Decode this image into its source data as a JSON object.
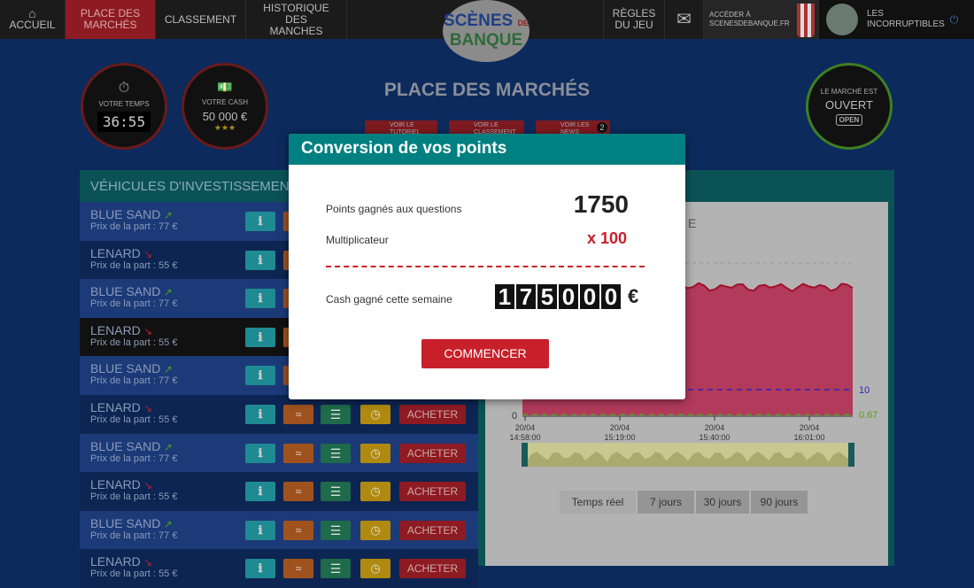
{
  "nav": {
    "items": [
      {
        "label": "ACCUEIL",
        "icon": "home-icon"
      },
      {
        "label": "PLACE DES MARCHÉS",
        "active": true
      },
      {
        "label": "CLASSEMENT"
      },
      {
        "label": "HISTORIQUE DES MANCHES"
      }
    ],
    "right": {
      "rules": "RÈGLES DU JEU",
      "access_line1": "ACCÉDER À",
      "access_line2": "SCENESDEBANQUE.FR",
      "team_line1": "LES",
      "team_line2": "INCORRUPTIBLES"
    },
    "logo": {
      "line1": "SCÈNES",
      "de": "DE",
      "line2": "BANQUE"
    }
  },
  "stats": {
    "time_label": "VOTRE TEMPS",
    "time": "36:55",
    "cash_label": "VOTRE CASH",
    "cash": "50 000 €",
    "stars": "★★★"
  },
  "market": {
    "line1": "LE MARCHÉ EST",
    "status": "OUVERT",
    "sign": "OPEN"
  },
  "page_title": "PLACE DES MARCHÉS",
  "sub_buttons": [
    {
      "label": "VOIR LE TUTORIEL"
    },
    {
      "label": "VOIR LE CLASSEMENT"
    },
    {
      "label": "VOIR LES NEWS",
      "badge": "2"
    }
  ],
  "vehicles": {
    "title": "VÉHICULES D'INVESTISSEMENTS",
    "buy_label": "ACHETER",
    "rows": [
      {
        "name": "BLUE SAND",
        "price": "Prix de la part : 77 €",
        "trend": "up"
      },
      {
        "name": "LENARD",
        "price": "Prix de la part : 55 €",
        "trend": "down"
      },
      {
        "name": "BLUE SAND",
        "price": "Prix de la part : 77 €",
        "trend": "up"
      },
      {
        "name": "LENARD",
        "price": "Prix de la part : 55 €",
        "trend": "down",
        "selected": true
      },
      {
        "name": "BLUE SAND",
        "price": "Prix de la part : 77 €",
        "trend": "up"
      },
      {
        "name": "LENARD",
        "price": "Prix de la part : 55 €",
        "trend": "down"
      },
      {
        "name": "BLUE SAND",
        "price": "Prix de la part : 77 €",
        "trend": "up"
      },
      {
        "name": "LENARD",
        "price": "Prix de la part : 55 €",
        "trend": "down"
      },
      {
        "name": "BLUE SAND",
        "price": "Prix de la part : 77 €",
        "trend": "up"
      },
      {
        "name": "LENARD",
        "price": "Prix de la part : 55 €",
        "trend": "down"
      }
    ]
  },
  "chart": {
    "title_fragment": "E",
    "y_zero": "0",
    "ref_blue": "10",
    "ref_green": "0.67",
    "x_ticks": [
      {
        "d": "20/04",
        "t": "14:58:00"
      },
      {
        "d": "20/04",
        "t": "15:19:00"
      },
      {
        "d": "20/04",
        "t": "15:40:00"
      },
      {
        "d": "20/04",
        "t": "16:01:00"
      }
    ],
    "ranges": [
      "Temps réel",
      "7 jours",
      "30 jours",
      "90 jours"
    ],
    "fill": "#b23a5a"
  },
  "modal": {
    "title": "Conversion de vos points",
    "points_label": "Points gagnés aux questions",
    "points": "1750",
    "mult_label": "Multiplicateur",
    "mult": "x 100",
    "cash_label": "Cash gagné cette semaine",
    "cash_digits": [
      "1",
      "7",
      "5",
      "0",
      "0",
      "0"
    ],
    "currency": "€",
    "start": "COMMENCER"
  }
}
